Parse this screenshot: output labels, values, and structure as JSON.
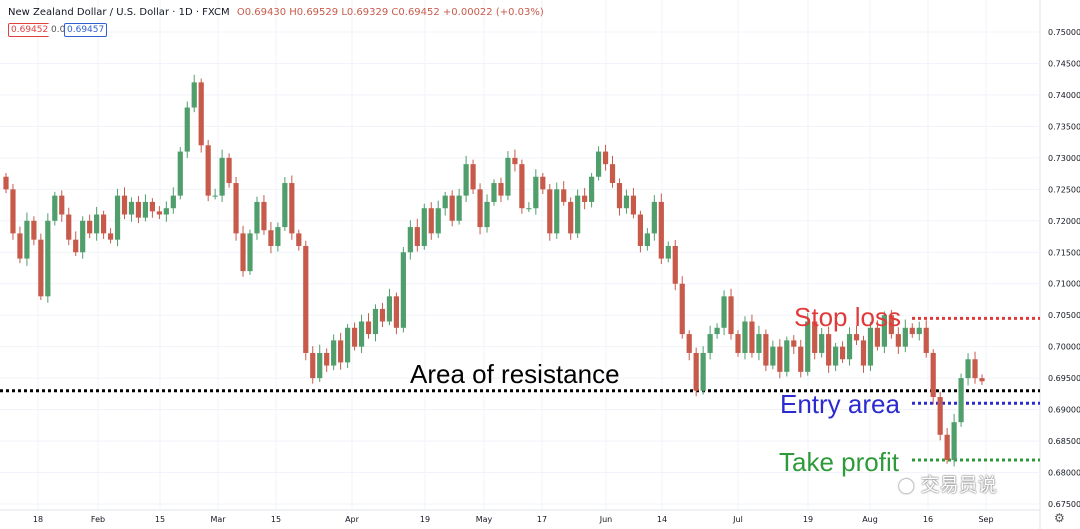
{
  "header": {
    "symbol": "New Zealand Dollar / U.S. Dollar · 1D · FXCM",
    "ohlc": "O0.69430 H0.69529 L0.69329 C0.69452 +0.00022 (+0.03%)",
    "sell_price": "0.69452",
    "spread": "0.0",
    "buy_price": "0.69457"
  },
  "colors": {
    "up": "#4f9e6b",
    "down": "#c85a4b",
    "resistance": "#000000",
    "stop": "#e03a3a",
    "entry": "#2b2bd0",
    "profit": "#2f9a3a"
  },
  "annotations": {
    "resistance_label": "Area of resistance",
    "stop_label": "Stop loss",
    "entry_label": "Entry area",
    "profit_label": "Take profit"
  },
  "watermark": "交易员说",
  "chart_data": {
    "type": "candlestick",
    "y_axis": {
      "range": [
        0.675,
        0.75
      ],
      "ticks": [
        "0.75000",
        "0.74500",
        "0.74000",
        "0.73500",
        "0.73000",
        "0.72500",
        "0.72000",
        "0.71500",
        "0.71000",
        "0.70500",
        "0.70000",
        "0.69500",
        "0.69000",
        "0.68500",
        "0.68000",
        "0.67500"
      ]
    },
    "x_axis": {
      "ticks": [
        "18",
        "Feb",
        "15",
        "Mar",
        "15",
        "Apr",
        "19",
        "May",
        "17",
        "Jun",
        "14",
        "Jul",
        "19",
        "Aug",
        "16",
        "Sep"
      ]
    },
    "levels": {
      "resistance": 0.693,
      "stop_loss": 0.7045,
      "entry": 0.691,
      "take_profit": 0.682
    },
    "series_close": [
      0.725,
      0.718,
      0.714,
      0.72,
      0.717,
      0.708,
      0.72,
      0.724,
      0.721,
      0.717,
      0.715,
      0.72,
      0.718,
      0.721,
      0.718,
      0.717,
      0.724,
      0.721,
      0.723,
      0.7205,
      0.723,
      0.7215,
      0.721,
      0.722,
      0.724,
      0.731,
      0.738,
      0.742,
      0.732,
      0.724,
      0.724,
      0.73,
      0.726,
      0.718,
      0.712,
      0.718,
      0.723,
      0.7185,
      0.716,
      0.719,
      0.726,
      0.718,
      0.716,
      0.699,
      0.695,
      0.699,
      0.697,
      0.701,
      0.6975,
      0.703,
      0.7,
      0.704,
      0.702,
      0.706,
      0.704,
      0.708,
      0.703,
      0.715,
      0.719,
      0.716,
      0.722,
      0.718,
      0.722,
      0.724,
      0.72,
      0.724,
      0.729,
      0.725,
      0.719,
      0.723,
      0.726,
      0.724,
      0.73,
      0.729,
      0.722,
      0.722,
      0.727,
      0.725,
      0.718,
      0.725,
      0.723,
      0.718,
      0.724,
      0.723,
      0.727,
      0.731,
      0.729,
      0.726,
      0.722,
      0.724,
      0.721,
      0.716,
      0.718,
      0.723,
      0.714,
      0.716,
      0.71,
      0.702,
      0.699,
      0.693,
      0.699,
      0.702,
      0.703,
      0.708,
      0.702,
      0.699,
      0.704,
      0.699,
      0.702,
      0.697,
      0.7,
      0.696,
      0.701,
      0.7,
      0.696,
      0.704,
      0.699,
      0.702,
      0.697,
      0.7,
      0.698,
      0.702,
      0.701,
      0.697,
      0.703,
      0.7,
      0.705,
      0.702,
      0.7,
      0.703,
      0.702,
      0.703,
      0.699,
      0.692,
      0.686,
      0.682,
      0.688,
      0.695,
      0.698,
      0.695,
      0.6945
    ]
  }
}
